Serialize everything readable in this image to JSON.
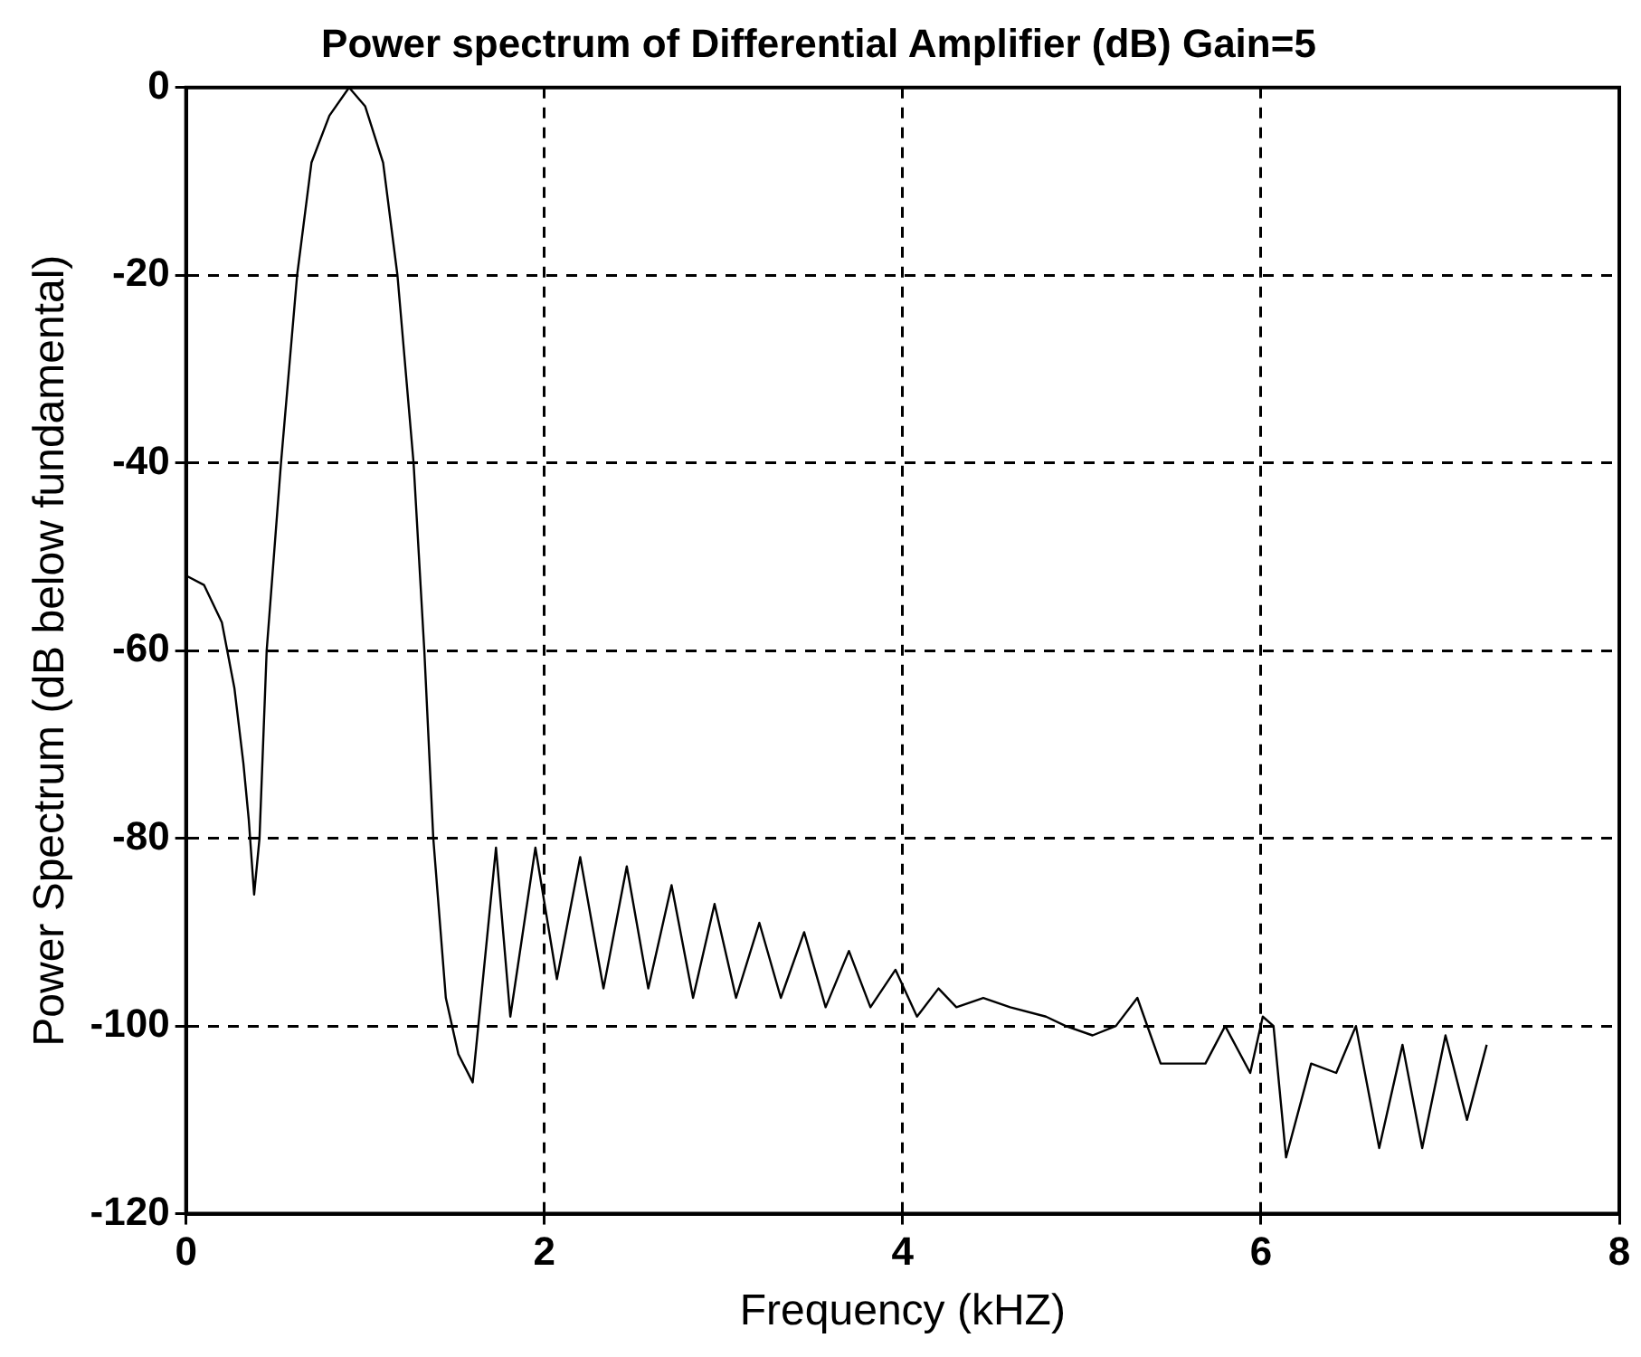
{
  "chart_data": {
    "type": "line",
    "title": "Power spectrum of Differential Amplifier (dB) Gain=5",
    "xlabel": "Frequency (kHZ)",
    "ylabel": "Power Spectrum (dB below fundamental)",
    "xlim": [
      0,
      8
    ],
    "xticks": [
      0,
      2,
      4,
      6,
      8
    ],
    "ylim": [
      -120,
      0
    ],
    "yticks": [
      -120,
      -100,
      -80,
      -60,
      -40,
      -20,
      0
    ],
    "grid": true,
    "legend": false,
    "marker": "none",
    "line_style": "solid",
    "series": [
      {
        "color": "#000000",
        "x": [
          0,
          0.1,
          0.2,
          0.23,
          0.27,
          0.32,
          0.35,
          0.38,
          0.41,
          0.45,
          0.53,
          0.62,
          0.7,
          0.8,
          0.91,
          1.0,
          1.1,
          1.18,
          1.27,
          1.33,
          1.38,
          1.45,
          1.52,
          1.6,
          1.73,
          1.81,
          1.95,
          2.07,
          2.2,
          2.33,
          2.46,
          2.58,
          2.71,
          2.83,
          2.95,
          3.07,
          3.2,
          3.32,
          3.45,
          3.57,
          3.7,
          3.82,
          3.96,
          4.08,
          4.2,
          4.3,
          4.45,
          4.6,
          4.8,
          4.91,
          5.06,
          5.19,
          5.31,
          5.44,
          5.69,
          5.8,
          5.94,
          6.01,
          6.07,
          6.14,
          6.28,
          6.42,
          6.53,
          6.66,
          6.79,
          6.9,
          7.03,
          7.15,
          7.26
        ],
        "values": [
          -52,
          -53,
          -57,
          -60,
          -64,
          -72,
          -78,
          -86,
          -80,
          -60,
          -40,
          -20,
          -8,
          -3,
          0,
          -2,
          -8,
          -20,
          -40,
          -60,
          -80,
          -97,
          -103,
          -106,
          -81,
          -99,
          -81,
          -95,
          -82,
          -96,
          -83,
          -96,
          -85,
          -97,
          -87,
          -97,
          -89,
          -97,
          -90,
          -98,
          -92,
          -98,
          -94,
          -99,
          -96,
          -98,
          -97,
          -98,
          -99,
          -100,
          -101,
          -100,
          -97,
          -104,
          -104,
          -100,
          -105,
          -99,
          -100,
          -114,
          -104,
          -105,
          -100,
          -113,
          -102,
          -113,
          -101,
          -110,
          -102
        ]
      }
    ]
  }
}
